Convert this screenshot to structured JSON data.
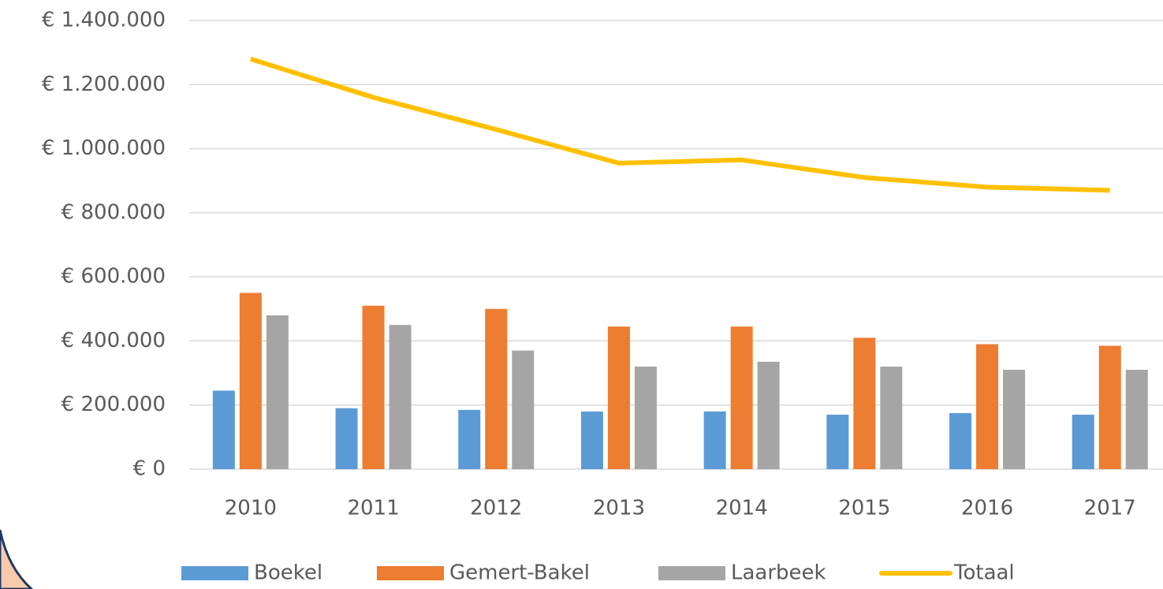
{
  "chart_data": {
    "type": "bar",
    "categories": [
      "2010",
      "2011",
      "2012",
      "2013",
      "2014",
      "2015",
      "2016",
      "2017"
    ],
    "series": [
      {
        "name": "Boekel",
        "color": "#5b9bd5",
        "values": [
          245000,
          190000,
          185000,
          180000,
          180000,
          170000,
          175000,
          170000
        ]
      },
      {
        "name": "Gemert-Bakel",
        "color": "#ed7d31",
        "values": [
          550000,
          510000,
          500000,
          445000,
          445000,
          410000,
          390000,
          385000
        ]
      },
      {
        "name": "Laarbeek",
        "color": "#a5a5a5",
        "values": [
          480000,
          450000,
          370000,
          320000,
          335000,
          320000,
          310000,
          310000
        ]
      },
      {
        "name": "Totaal",
        "color": "#ffc000",
        "type": "line",
        "values": [
          1280000,
          1160000,
          1060000,
          955000,
          965000,
          910000,
          880000,
          870000
        ]
      }
    ],
    "ylim": [
      0,
      1400000
    ],
    "yticks": [
      {
        "value": 0,
        "label": "€ 0"
      },
      {
        "value": 200000,
        "label": "€ 200.000"
      },
      {
        "value": 400000,
        "label": "€ 400.000"
      },
      {
        "value": 600000,
        "label": "€ 600.000"
      },
      {
        "value": 800000,
        "label": "€ 800.000"
      },
      {
        "value": 1000000,
        "label": "€ 1.000.000"
      },
      {
        "value": 1200000,
        "label": "€ 1.200.000"
      },
      {
        "value": 1400000,
        "label": "€ 1.400.000"
      }
    ],
    "grid": true,
    "legend": "bottom"
  }
}
